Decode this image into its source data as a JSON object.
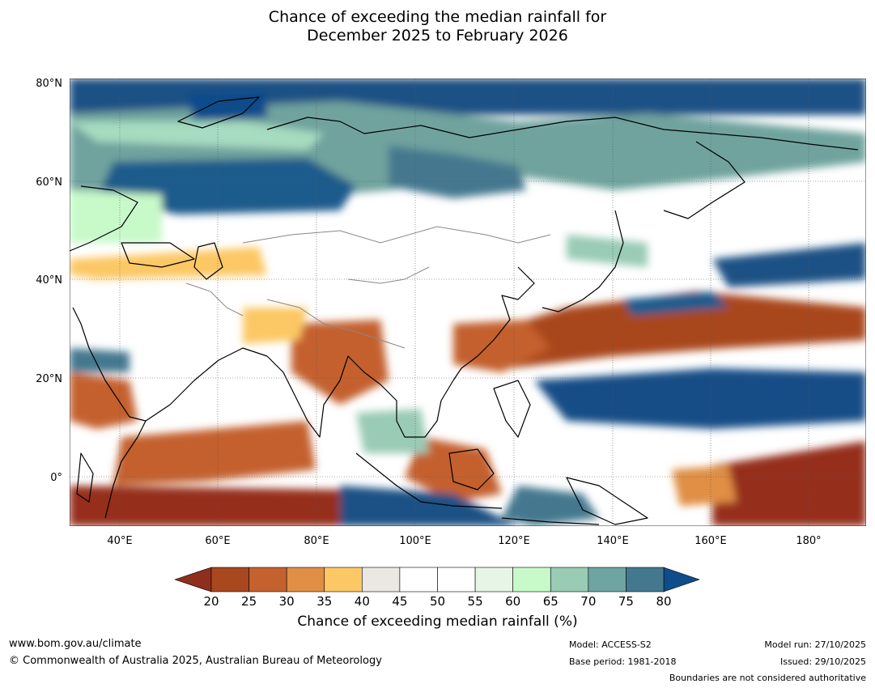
{
  "title": {
    "line1": "Chance of exceeding the median rainfall for",
    "line2": "December 2025 to February 2026"
  },
  "map": {
    "lat_labels": [
      "80°N",
      "60°N",
      "40°N",
      "20°N",
      "0°"
    ],
    "lat_values": [
      80,
      60,
      40,
      20,
      0
    ],
    "lon_labels": [
      "40°E",
      "60°E",
      "80°E",
      "100°E",
      "120°E",
      "140°E",
      "160°E",
      "180°"
    ],
    "lon_values": [
      40,
      60,
      80,
      100,
      120,
      140,
      160,
      180
    ],
    "lon_range": [
      30,
      191
    ],
    "lat_range": [
      -10,
      80
    ]
  },
  "colorbar": {
    "title": "Chance of exceeding median rainfall (%)",
    "ticks": [
      "20",
      "25",
      "30",
      "35",
      "40",
      "45",
      "50",
      "55",
      "60",
      "65",
      "70",
      "75",
      "80"
    ],
    "low_color": "#8f2e1c",
    "high_color": "#0f4c8a",
    "colors": [
      "#a9471f",
      "#c4612e",
      "#e08f45",
      "#fcc865",
      "#ebe8e4",
      "#ffffff",
      "#ffffff",
      "#e7f5e6",
      "#c7f9c9",
      "#99cbb5",
      "#6ea5a2",
      "#44788f"
    ]
  },
  "footer": {
    "website": "www.bom.gov.au/climate",
    "copyright": "© Commonwealth of Australia 2025, Australian Bureau of Meteorology",
    "model": "Model: ACCESS-S2",
    "base_period": "Base period: 1981-2018",
    "model_run": "Model run: 27/10/2025",
    "issued": "Issued: 29/10/2025",
    "disclaimer": "Boundaries are not considered authoritative"
  }
}
